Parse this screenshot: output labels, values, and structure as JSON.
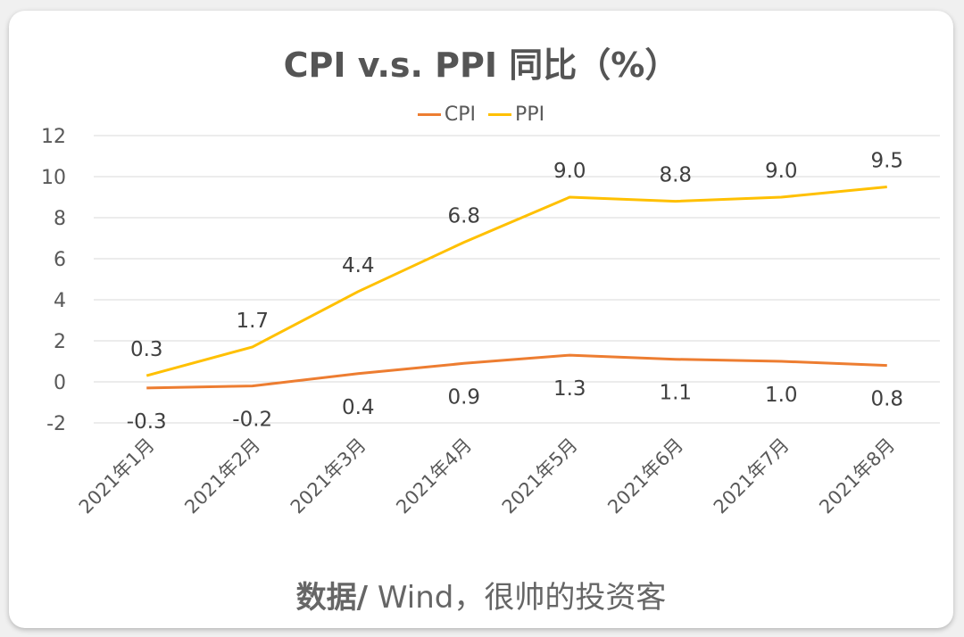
{
  "chart_data": {
    "type": "line",
    "title": "CPI v.s. PPI 同比（%）",
    "categories": [
      "2021年1月",
      "2021年2月",
      "2021年3月",
      "2021年4月",
      "2021年5月",
      "2021年6月",
      "2021年7月",
      "2021年8月"
    ],
    "series": [
      {
        "name": "CPI",
        "color": "#ED7D31",
        "values": [
          -0.3,
          -0.2,
          0.4,
          0.9,
          1.3,
          1.1,
          1.0,
          0.8
        ],
        "labels": [
          "-0.3",
          "-0.2",
          "0.4",
          "0.9",
          "1.3",
          "1.1",
          "1.0",
          "0.8"
        ]
      },
      {
        "name": "PPI",
        "color": "#FFC000",
        "values": [
          0.3,
          1.7,
          4.4,
          6.8,
          9.0,
          8.8,
          9.0,
          9.5
        ],
        "labels": [
          "0.3",
          "1.7",
          "4.4",
          "6.8",
          "9.0",
          "8.8",
          "9.0",
          "9.5"
        ]
      }
    ],
    "yticks": [
      "12",
      "10",
      "8",
      "6",
      "4",
      "2",
      "0",
      "-2"
    ],
    "ytick_values": [
      12,
      10,
      8,
      6,
      4,
      2,
      0,
      -2
    ],
    "ylim": [
      -2,
      12
    ],
    "xlabel": "",
    "ylabel": "",
    "grid": true,
    "legend_position": "top-center"
  },
  "footer": {
    "source_label": "数据/",
    "source_text": " Wind，很帅的投资客"
  }
}
